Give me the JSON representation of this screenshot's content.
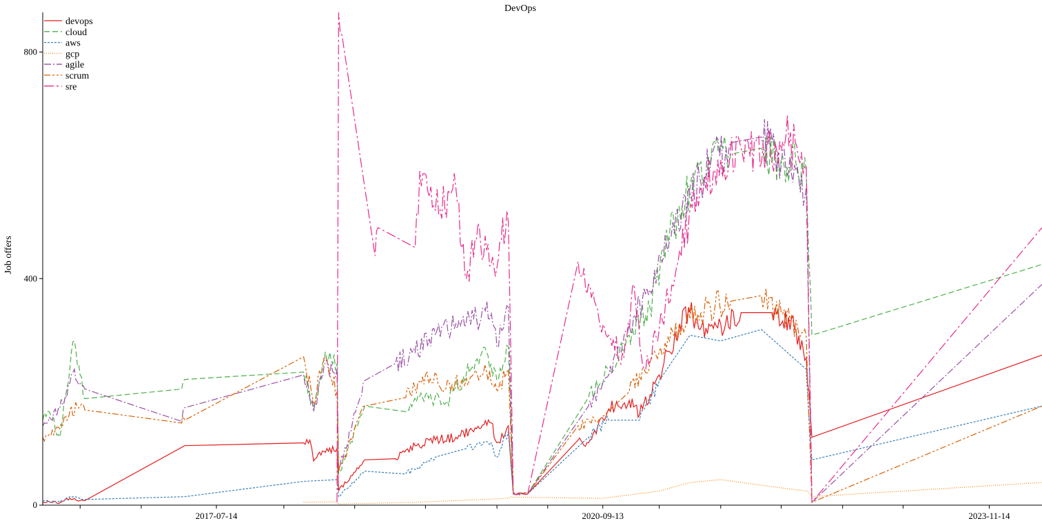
{
  "chart_data": {
    "type": "line",
    "title": "DevOps",
    "xlabel": "",
    "ylabel": "Job offers",
    "x_type": "date",
    "xlim": [
      "2016-02-10",
      "2024-04-20"
    ],
    "ylim": [
      0,
      870
    ],
    "x_ticks": [
      "2016-06-01",
      "2016-12-01",
      "2017-07-14",
      "2018-02-01",
      "2018-09-01",
      "2019-04-01",
      "2019-11-01",
      "2020-04-01",
      "2020-09-13",
      "2021-03-01",
      "2021-09-01",
      "2022-03-01",
      "2022-09-01",
      "2023-03-01",
      "2023-11-14"
    ],
    "x_tick_labels": [
      "",
      "",
      "2017-07-14",
      "",
      "",
      "",
      "",
      "",
      "2020-09-13",
      "",
      "",
      "",
      "",
      "",
      "2023-11-14"
    ],
    "y_ticks": [
      0,
      400,
      800
    ],
    "y_tick_labels": [
      "0",
      "400",
      "800"
    ],
    "legend_position": "top-left",
    "series": [
      {
        "name": "devops",
        "color": "#e41a1c",
        "dash": "solid",
        "points": [
          [
            "2016-02-10",
            5
          ],
          [
            "2016-03-01",
            6
          ],
          [
            "2016-04-01",
            4
          ],
          [
            "2016-05-01",
            12
          ],
          [
            "2016-06-01",
            8
          ],
          [
            "2016-06-15",
            8
          ],
          [
            "2017-04-10",
            105
          ],
          [
            "2018-04-01",
            110
          ],
          [
            "2018-04-20",
            115
          ],
          [
            "2018-05-01",
            78
          ],
          [
            "2018-06-01",
            95
          ],
          [
            "2018-07-10",
            100
          ],
          [
            "2018-07-15",
            25
          ],
          [
            "2018-10-01",
            80
          ],
          [
            "2019-01-01",
            82
          ],
          [
            "2019-03-01",
            105
          ],
          [
            "2019-05-01",
            115
          ],
          [
            "2019-07-01",
            120
          ],
          [
            "2019-09-01",
            135
          ],
          [
            "2019-10-15",
            145
          ],
          [
            "2019-11-01",
            110
          ],
          [
            "2019-12-05",
            140
          ],
          [
            "2019-12-20",
            20
          ],
          [
            "2020-02-01",
            20
          ],
          [
            "2020-07-01",
            115
          ],
          [
            "2020-08-01",
            110
          ],
          [
            "2020-10-01",
            170
          ],
          [
            "2020-12-01",
            185
          ],
          [
            "2021-01-01",
            160
          ],
          [
            "2021-03-01",
            230
          ],
          [
            "2021-05-01",
            320
          ],
          [
            "2021-06-01",
            340
          ],
          [
            "2021-07-01",
            310
          ],
          [
            "2021-09-01",
            320
          ],
          [
            "2021-11-01",
            340
          ],
          [
            "2022-02-01",
            340
          ],
          [
            "2022-03-01",
            320
          ],
          [
            "2022-04-01",
            330
          ],
          [
            "2022-05-15",
            260
          ],
          [
            "2022-06-01",
            120
          ],
          [
            "2024-04-20",
            265
          ]
        ]
      },
      {
        "name": "cloud",
        "color": "#4daf4a",
        "dash": "8,4",
        "points": [
          [
            "2016-02-10",
            150
          ],
          [
            "2016-03-01",
            165
          ],
          [
            "2016-04-01",
            120
          ],
          [
            "2016-05-01",
            240
          ],
          [
            "2016-05-15",
            290
          ],
          [
            "2016-06-01",
            230
          ],
          [
            "2016-06-15",
            188
          ],
          [
            "2017-04-01",
            205
          ],
          [
            "2017-04-10",
            222
          ],
          [
            "2018-04-01",
            235
          ],
          [
            "2018-05-01",
            175
          ],
          [
            "2018-06-01",
            255
          ],
          [
            "2018-07-10",
            250
          ],
          [
            "2018-07-15",
            55
          ],
          [
            "2018-10-01",
            175
          ],
          [
            "2019-02-01",
            165
          ],
          [
            "2019-04-01",
            195
          ],
          [
            "2019-06-01",
            180
          ],
          [
            "2019-08-01",
            230
          ],
          [
            "2019-10-01",
            270
          ],
          [
            "2019-11-01",
            220
          ],
          [
            "2019-12-05",
            280
          ],
          [
            "2019-12-20",
            20
          ],
          [
            "2020-02-01",
            20
          ],
          [
            "2020-08-01",
            190
          ],
          [
            "2020-10-01",
            240
          ],
          [
            "2020-12-01",
            300
          ],
          [
            "2021-02-01",
            350
          ],
          [
            "2021-04-01",
            480
          ],
          [
            "2021-06-01",
            560
          ],
          [
            "2021-08-01",
            600
          ],
          [
            "2021-10-01",
            620
          ],
          [
            "2022-01-01",
            630
          ],
          [
            "2022-03-01",
            610
          ],
          [
            "2022-05-15",
            590
          ],
          [
            "2022-06-01",
            300
          ],
          [
            "2024-04-20",
            425
          ]
        ]
      },
      {
        "name": "aws",
        "color": "#377eb8",
        "dash": "3,2",
        "points": [
          [
            "2016-02-10",
            7
          ],
          [
            "2016-04-01",
            5
          ],
          [
            "2016-05-01",
            15
          ],
          [
            "2016-06-15",
            10
          ],
          [
            "2017-04-10",
            15
          ],
          [
            "2018-04-01",
            42
          ],
          [
            "2018-07-10",
            45
          ],
          [
            "2018-07-15",
            15
          ],
          [
            "2018-10-01",
            60
          ],
          [
            "2019-02-01",
            55
          ],
          [
            "2019-05-01",
            85
          ],
          [
            "2019-08-01",
            100
          ],
          [
            "2019-10-15",
            110
          ],
          [
            "2019-11-01",
            85
          ],
          [
            "2019-12-05",
            130
          ],
          [
            "2019-12-20",
            20
          ],
          [
            "2020-02-01",
            20
          ],
          [
            "2020-08-01",
            120
          ],
          [
            "2020-10-01",
            150
          ],
          [
            "2021-01-01",
            150
          ],
          [
            "2021-03-01",
            220
          ],
          [
            "2021-06-01",
            300
          ],
          [
            "2021-09-01",
            290
          ],
          [
            "2022-01-01",
            310
          ],
          [
            "2022-05-15",
            240
          ],
          [
            "2022-06-01",
            80
          ],
          [
            "2024-04-20",
            175
          ]
        ]
      },
      {
        "name": "gcp",
        "color": "#ff7f00",
        "dash": "1,2",
        "points": [
          [
            "2018-04-01",
            5
          ],
          [
            "2018-07-10",
            6
          ],
          [
            "2018-07-15",
            2
          ],
          [
            "2019-03-01",
            5
          ],
          [
            "2019-12-05",
            12
          ],
          [
            "2019-12-20",
            14
          ],
          [
            "2020-09-13",
            12
          ],
          [
            "2021-03-01",
            25
          ],
          [
            "2021-06-01",
            40
          ],
          [
            "2021-09-01",
            45
          ],
          [
            "2022-01-01",
            35
          ],
          [
            "2022-05-15",
            25
          ],
          [
            "2022-06-01",
            15
          ],
          [
            "2024-04-20",
            40
          ]
        ]
      },
      {
        "name": "agile",
        "color": "#984ea3",
        "dash": "10,3,2,3",
        "points": [
          [
            "2016-02-10",
            140
          ],
          [
            "2016-03-01",
            155
          ],
          [
            "2016-04-01",
            170
          ],
          [
            "2016-05-01",
            215
          ],
          [
            "2016-05-15",
            240
          ],
          [
            "2016-06-01",
            215
          ],
          [
            "2016-06-15",
            205
          ],
          [
            "2017-04-01",
            148
          ],
          [
            "2017-04-10",
            172
          ],
          [
            "2018-04-01",
            230
          ],
          [
            "2018-05-01",
            165
          ],
          [
            "2018-06-01",
            245
          ],
          [
            "2018-07-10",
            240
          ],
          [
            "2018-07-15",
            60
          ],
          [
            "2018-10-01",
            220
          ],
          [
            "2019-01-01",
            250
          ],
          [
            "2019-03-01",
            270
          ],
          [
            "2019-05-01",
            300
          ],
          [
            "2019-07-01",
            320
          ],
          [
            "2019-09-01",
            330
          ],
          [
            "2019-10-15",
            340
          ],
          [
            "2019-11-01",
            280
          ],
          [
            "2019-12-05",
            350
          ],
          [
            "2019-12-20",
            20
          ],
          [
            "2020-02-01",
            20
          ],
          [
            "2020-08-01",
            175
          ],
          [
            "2020-10-01",
            230
          ],
          [
            "2020-12-01",
            320
          ],
          [
            "2021-02-01",
            380
          ],
          [
            "2021-04-01",
            470
          ],
          [
            "2021-06-01",
            550
          ],
          [
            "2021-08-01",
            600
          ],
          [
            "2021-10-01",
            640
          ],
          [
            "2022-01-01",
            650
          ],
          [
            "2022-03-01",
            600
          ],
          [
            "2022-05-15",
            560
          ],
          [
            "2022-06-01",
            5
          ],
          [
            "2024-04-20",
            390
          ]
        ]
      },
      {
        "name": "scrum",
        "color": "#d95f02",
        "dash": "9,3,3,3,3,3",
        "points": [
          [
            "2016-02-10",
            120
          ],
          [
            "2016-03-01",
            125
          ],
          [
            "2016-04-01",
            135
          ],
          [
            "2016-05-01",
            165
          ],
          [
            "2016-06-01",
            175
          ],
          [
            "2016-06-15",
            168
          ],
          [
            "2017-04-01",
            145
          ],
          [
            "2017-04-10",
            150
          ],
          [
            "2018-04-01",
            262
          ],
          [
            "2018-05-01",
            180
          ],
          [
            "2018-06-01",
            260
          ],
          [
            "2018-07-10",
            200
          ],
          [
            "2018-07-15",
            60
          ],
          [
            "2018-10-01",
            175
          ],
          [
            "2019-02-01",
            190
          ],
          [
            "2019-04-01",
            230
          ],
          [
            "2019-06-01",
            205
          ],
          [
            "2019-08-01",
            225
          ],
          [
            "2019-10-01",
            235
          ],
          [
            "2019-11-01",
            200
          ],
          [
            "2019-12-05",
            240
          ],
          [
            "2019-12-20",
            20
          ],
          [
            "2020-02-01",
            20
          ],
          [
            "2020-07-01",
            140
          ],
          [
            "2020-09-01",
            150
          ],
          [
            "2020-12-01",
            200
          ],
          [
            "2021-02-01",
            250
          ],
          [
            "2021-04-01",
            290
          ],
          [
            "2021-06-01",
            330
          ],
          [
            "2021-08-01",
            350
          ],
          [
            "2021-10-01",
            360
          ],
          [
            "2022-01-01",
            370
          ],
          [
            "2022-03-01",
            340
          ],
          [
            "2022-05-15",
            300
          ],
          [
            "2022-06-01",
            5
          ],
          [
            "2024-04-20",
            175
          ]
        ]
      },
      {
        "name": "sre",
        "color": "#e7298a",
        "dash": "14,4,3,4",
        "points": [
          [
            "2018-07-10",
            5
          ],
          [
            "2018-07-15",
            870
          ],
          [
            "2018-07-25",
            830
          ],
          [
            "2018-11-01",
            440
          ],
          [
            "2018-11-10",
            490
          ],
          [
            "2019-03-01",
            455
          ],
          [
            "2019-03-15",
            590
          ],
          [
            "2019-05-01",
            520
          ],
          [
            "2019-07-01",
            560
          ],
          [
            "2019-08-01",
            400
          ],
          [
            "2019-09-01",
            470
          ],
          [
            "2019-10-01",
            450
          ],
          [
            "2019-11-01",
            420
          ],
          [
            "2019-12-01",
            520
          ],
          [
            "2019-12-05",
            500
          ],
          [
            "2019-12-20",
            20
          ],
          [
            "2020-02-01",
            20
          ],
          [
            "2020-07-01",
            430
          ],
          [
            "2020-08-01",
            390
          ],
          [
            "2020-09-01",
            330
          ],
          [
            "2020-10-01",
            300
          ],
          [
            "2020-11-15",
            260
          ],
          [
            "2020-12-15",
            390
          ],
          [
            "2021-01-15",
            240
          ],
          [
            "2021-03-01",
            310
          ],
          [
            "2021-05-01",
            450
          ],
          [
            "2021-07-01",
            560
          ],
          [
            "2021-09-01",
            610
          ],
          [
            "2021-11-01",
            630
          ],
          [
            "2022-01-15",
            620
          ],
          [
            "2022-03-15",
            650
          ],
          [
            "2022-05-15",
            600
          ],
          [
            "2022-06-01",
            5
          ],
          [
            "2024-04-20",
            490
          ]
        ]
      }
    ]
  }
}
